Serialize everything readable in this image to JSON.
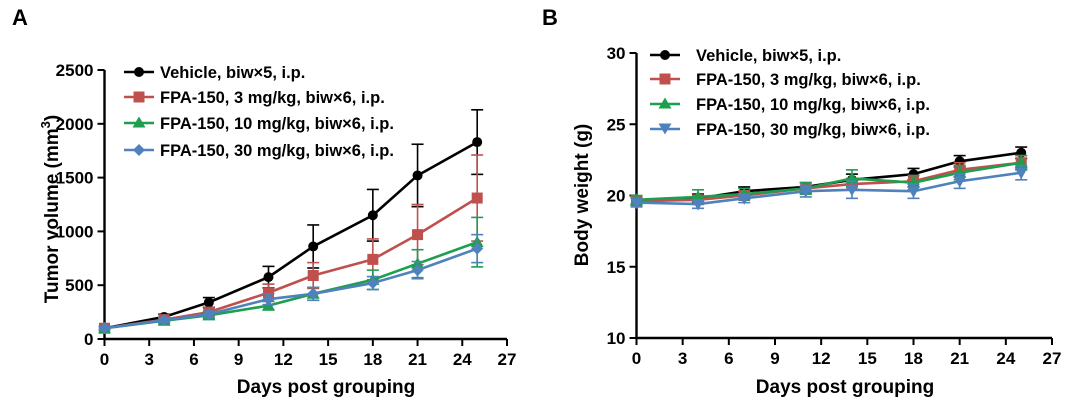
{
  "chart_data": [
    {
      "type": "line",
      "panel_label": "A",
      "title": "",
      "xlabel": "Days post grouping",
      "ylabel": "Tumor volume (mm",
      "ylabel_superscript": "3",
      "ylabel_suffix": ")",
      "xlim": [
        0,
        27
      ],
      "ylim": [
        0,
        2500
      ],
      "xticks": [
        0,
        3,
        6,
        9,
        12,
        15,
        18,
        21,
        24,
        27
      ],
      "yticks": [
        0,
        500,
        1000,
        1500,
        2000,
        2500
      ],
      "legend_position": "top-left",
      "x": [
        0,
        4,
        7,
        11,
        14,
        18,
        21,
        25
      ],
      "series": [
        {
          "name": "Vehicle, biw×5, i.p.",
          "color": "#000000",
          "marker": "circle",
          "values": [
            100,
            205,
            340,
            575,
            860,
            1150,
            1520,
            1830
          ],
          "errors": [
            15,
            25,
            45,
            100,
            200,
            240,
            290,
            300
          ]
        },
        {
          "name": "FPA-150, 3 mg/kg, biw×6, i.p.",
          "color": "#c0504d",
          "marker": "square",
          "values": [
            100,
            180,
            250,
            430,
            590,
            740,
            970,
            1310
          ],
          "errors": [
            15,
            25,
            35,
            80,
            120,
            190,
            280,
            400
          ]
        },
        {
          "name": "FPA-150, 10 mg/kg, biw×6, i.p.",
          "color": "#1e9e4f",
          "marker": "triangle-up",
          "values": [
            100,
            170,
            220,
            310,
            420,
            550,
            700,
            900
          ],
          "errors": [
            15,
            20,
            30,
            40,
            60,
            90,
            130,
            230
          ]
        },
        {
          "name": "FPA-150, 30 mg/kg, biw×6, i.p.",
          "color": "#4f81bd",
          "marker": "diamond",
          "values": [
            100,
            175,
            230,
            370,
            420,
            520,
            640,
            840
          ],
          "errors": [
            15,
            20,
            30,
            50,
            60,
            60,
            80,
            130
          ]
        }
      ]
    },
    {
      "type": "line",
      "panel_label": "B",
      "title": "",
      "xlabel": "Days post grouping",
      "ylabel": "Body weight (g)",
      "xlim": [
        0,
        27
      ],
      "ylim": [
        10,
        30
      ],
      "xticks": [
        0,
        3,
        6,
        9,
        12,
        15,
        18,
        21,
        24,
        27
      ],
      "yticks": [
        10,
        15,
        20,
        25,
        30
      ],
      "legend_position": "top-left",
      "x": [
        0,
        4,
        7,
        11,
        14,
        18,
        21,
        25
      ],
      "series": [
        {
          "name": "Vehicle, biw×5, i.p.",
          "color": "#000000",
          "marker": "circle",
          "values": [
            19.6,
            19.8,
            20.3,
            20.6,
            21.1,
            21.5,
            22.4,
            23.0
          ],
          "errors": [
            0.3,
            0.3,
            0.3,
            0.3,
            0.4,
            0.4,
            0.4,
            0.4
          ]
        },
        {
          "name": "FPA-150, 3 mg/kg, biw×6, i.p.",
          "color": "#c0504d",
          "marker": "square",
          "values": [
            19.6,
            19.7,
            20.0,
            20.5,
            20.8,
            21.0,
            21.8,
            22.3
          ],
          "errors": [
            0.3,
            0.3,
            0.3,
            0.4,
            0.4,
            0.4,
            0.5,
            0.5
          ]
        },
        {
          "name": "FPA-150, 10 mg/kg, biw×6, i.p.",
          "color": "#1e9e4f",
          "marker": "triangle-up",
          "values": [
            19.7,
            19.9,
            20.1,
            20.5,
            21.2,
            20.9,
            21.6,
            22.3
          ],
          "errors": [
            0.3,
            0.5,
            0.4,
            0.4,
            0.6,
            0.5,
            0.5,
            0.5
          ]
        },
        {
          "name": "FPA-150, 30 mg/kg, biw×6, i.p.",
          "color": "#4f81bd",
          "marker": "triangle-down",
          "values": [
            19.5,
            19.4,
            19.8,
            20.3,
            20.4,
            20.3,
            21.0,
            21.6
          ],
          "errors": [
            0.3,
            0.3,
            0.3,
            0.4,
            0.6,
            0.5,
            0.5,
            0.5
          ]
        }
      ]
    }
  ]
}
